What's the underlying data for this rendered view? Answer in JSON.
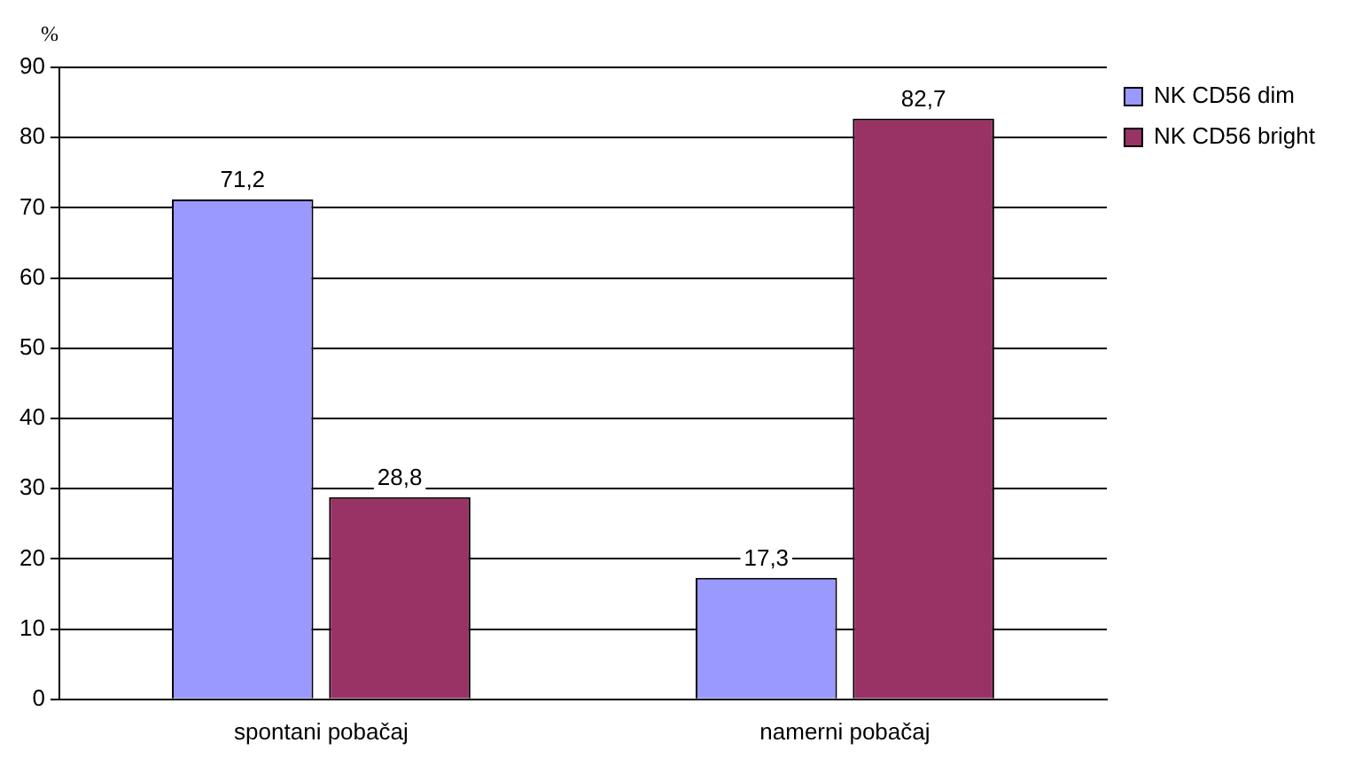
{
  "chart_data": {
    "type": "bar",
    "ylabel": "%",
    "categories": [
      "spontani pobačaj",
      "namerni pobačaj"
    ],
    "series": [
      {
        "name": "NK CD56 dim",
        "color": "#9999ff",
        "values": [
          71.2,
          17.3
        ],
        "value_labels": [
          "71,2",
          "17,3"
        ]
      },
      {
        "name": "NK CD56 bright",
        "color": "#993366",
        "values": [
          28.8,
          82.7
        ],
        "value_labels": [
          "28,8",
          "82,7"
        ]
      }
    ],
    "ylim": [
      0,
      90
    ],
    "yticks": [
      0,
      10,
      20,
      30,
      40,
      50,
      60,
      70,
      80,
      90
    ],
    "grid": "y",
    "legend": "top right"
  }
}
